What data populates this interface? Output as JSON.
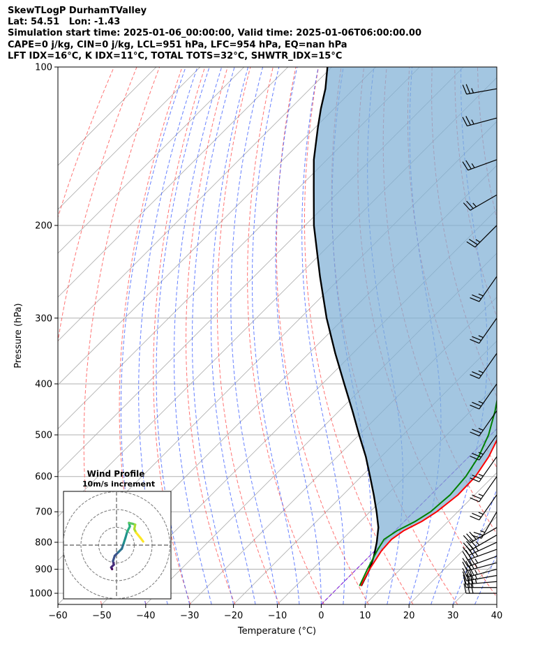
{
  "header": {
    "line1": "SkewTLogP DurhamTValley",
    "line2": "Lat: 54.51   Lon: -1.43",
    "line3": "Simulation start time: 2025-01-06_00:00:00, Valid time: 2025-01-06T06:00:00.00",
    "line4": "CAPE=0 j/kg, CIN=0 j/kg, LCL=951 hPa, LFC=954 hPa, EQ=nan hPa",
    "line5": "LFT IDX=16°C, K IDX=11°C, TOTAL TOTS=32°C, SHWTR_IDX=15°C"
  },
  "chart_data": {
    "type": "line",
    "subtype": "skew-T log-P",
    "xlabel": "Temperature (°C)",
    "ylabel": "Pressure (hPa)",
    "xlim": [
      -60,
      40
    ],
    "ylim": [
      1050,
      100
    ],
    "y_scale": "log",
    "grid": true,
    "x_ticks": [
      "−60",
      "−50",
      "−40",
      "−30",
      "−20",
      "−10",
      "0",
      "10",
      "20",
      "30",
      "40"
    ],
    "y_ticks": [
      "100",
      "200",
      "300",
      "400",
      "500",
      "600",
      "700",
      "800",
      "900",
      "1000"
    ],
    "colors": {
      "temperature": "#ff0000",
      "dewpoint": "#008000",
      "parcel": "#000000",
      "cape_fill": "#7fb0d6",
      "dry_adiabat": "#ff4444",
      "moist_adiabat": "#3355ff",
      "mixing_ratio": "#aaaaaa",
      "zero_isotherm": "#8a2be2"
    },
    "series": [
      {
        "key": "temperature",
        "points": [
          [
            4.8,
            968
          ],
          [
            3.0,
            900
          ],
          [
            1.5,
            830
          ],
          [
            1.2,
            790
          ],
          [
            2.0,
            760
          ],
          [
            4.0,
            730
          ],
          [
            5.2,
            700
          ],
          [
            6.2,
            650
          ],
          [
            6.0,
            600
          ],
          [
            4.5,
            550
          ],
          [
            2.0,
            500
          ],
          [
            -1.0,
            450
          ],
          [
            -4.5,
            400
          ],
          [
            -9.0,
            350
          ],
          [
            -14.0,
            300
          ],
          [
            -17.0,
            270
          ],
          [
            -18.5,
            260
          ],
          [
            -19.5,
            250
          ],
          [
            -22.0,
            230
          ],
          [
            -25.0,
            215
          ],
          [
            -28.5,
            200
          ],
          [
            -32.0,
            190
          ],
          [
            -36.0,
            180
          ],
          [
            -40.0,
            170
          ],
          [
            -43.5,
            160
          ],
          [
            -47.0,
            150
          ],
          [
            -50.5,
            140
          ],
          [
            -54.0,
            130
          ],
          [
            -57.5,
            120
          ],
          [
            -61.0,
            110
          ],
          [
            -64.5,
            100
          ]
        ]
      },
      {
        "key": "dewpoint",
        "points": [
          [
            4.5,
            968
          ],
          [
            2.5,
            900
          ],
          [
            0.5,
            830
          ],
          [
            -0.5,
            790
          ],
          [
            0.5,
            760
          ],
          [
            2.5,
            730
          ],
          [
            3.8,
            700
          ],
          [
            4.4,
            650
          ],
          [
            3.8,
            600
          ],
          [
            2.2,
            550
          ],
          [
            -0.5,
            500
          ],
          [
            -4.5,
            450
          ],
          [
            -9.5,
            400
          ],
          [
            -15.0,
            350
          ],
          [
            -20.5,
            300
          ],
          [
            -23.0,
            280
          ],
          [
            -25.0,
            270
          ],
          [
            -26.0,
            260
          ],
          [
            -27.0,
            250
          ],
          [
            -27.5,
            240
          ],
          [
            -28.5,
            230
          ],
          [
            -30.0,
            220
          ],
          [
            -31.5,
            210
          ],
          [
            -33.5,
            200
          ],
          [
            -37.0,
            190
          ],
          [
            -41.0,
            180
          ],
          [
            -44.5,
            170
          ],
          [
            -47.5,
            160
          ],
          [
            -50.0,
            150
          ],
          [
            -53.0,
            140
          ],
          [
            -56.0,
            130
          ],
          [
            -59.5,
            120
          ],
          [
            -63.0,
            110
          ],
          [
            -66.5,
            100
          ]
        ]
      },
      {
        "key": "parcel",
        "points": [
          [
            4.9,
            968
          ],
          [
            3.0,
            900
          ],
          [
            1.0,
            850
          ],
          [
            -1.5,
            800
          ],
          [
            -4.5,
            750
          ],
          [
            -8.5,
            700
          ],
          [
            -13.0,
            650
          ],
          [
            -18.0,
            600
          ],
          [
            -23.5,
            550
          ],
          [
            -30.0,
            500
          ],
          [
            -37.0,
            450
          ],
          [
            -45.0,
            400
          ],
          [
            -54.0,
            350
          ],
          [
            -64.0,
            300
          ],
          [
            -75.0,
            250
          ],
          [
            -88.0,
            200
          ],
          [
            -96.5,
            170
          ],
          [
            -103.0,
            150
          ],
          [
            -109.5,
            130
          ],
          [
            -113.0,
            120
          ],
          [
            -116.5,
            110
          ],
          [
            -121.0,
            100
          ]
        ]
      }
    ],
    "hodograph": {
      "title": "Wind Profile",
      "subtitle": "10m/s increment",
      "ring_increment_ms": 10,
      "points": [
        [
          -2.5,
          -13.5
        ],
        [
          -3.0,
          -12.5
        ],
        [
          -1.5,
          -11.0
        ],
        [
          -2.0,
          -9.0
        ],
        [
          -1.0,
          -6.0
        ],
        [
          1.0,
          -4.0
        ],
        [
          3.0,
          -2.0
        ],
        [
          4.0,
          1.0
        ],
        [
          5.0,
          4.0
        ],
        [
          6.0,
          7.5
        ],
        [
          7.5,
          10.5
        ],
        [
          7.0,
          12.5
        ],
        [
          9.0,
          12.0
        ],
        [
          10.5,
          11.5
        ],
        [
          10.0,
          9.0
        ],
        [
          11.0,
          7.0
        ],
        [
          13.5,
          4.0
        ],
        [
          15.0,
          2.0
        ]
      ]
    },
    "wind_barbs": [
      {
        "p": 1000,
        "spd": 30,
        "dir": 270
      },
      {
        "p": 975,
        "spd": 30,
        "dir": 270
      },
      {
        "p": 950,
        "spd": 35,
        "dir": 265
      },
      {
        "p": 925,
        "spd": 35,
        "dir": 260
      },
      {
        "p": 900,
        "spd": 35,
        "dir": 255
      },
      {
        "p": 875,
        "spd": 35,
        "dir": 255
      },
      {
        "p": 850,
        "spd": 35,
        "dir": 250
      },
      {
        "p": 825,
        "spd": 35,
        "dir": 250
      },
      {
        "p": 800,
        "spd": 35,
        "dir": 245
      },
      {
        "p": 775,
        "spd": 35,
        "dir": 240
      },
      {
        "p": 750,
        "spd": 30,
        "dir": 240
      },
      {
        "p": 700,
        "spd": 25,
        "dir": 210
      },
      {
        "p": 650,
        "spd": 25,
        "dir": 215
      },
      {
        "p": 600,
        "spd": 25,
        "dir": 215
      },
      {
        "p": 550,
        "spd": 25,
        "dir": 215
      },
      {
        "p": 500,
        "spd": 25,
        "dir": 215
      },
      {
        "p": 450,
        "spd": 25,
        "dir": 215
      },
      {
        "p": 400,
        "spd": 25,
        "dir": 215
      },
      {
        "p": 350,
        "spd": 25,
        "dir": 215
      },
      {
        "p": 300,
        "spd": 25,
        "dir": 215
      },
      {
        "p": 250,
        "spd": 25,
        "dir": 215
      },
      {
        "p": 200,
        "spd": 25,
        "dir": 225
      },
      {
        "p": 175,
        "spd": 25,
        "dir": 240
      },
      {
        "p": 150,
        "spd": 25,
        "dir": 250
      },
      {
        "p": 125,
        "spd": 25,
        "dir": 255
      },
      {
        "p": 110,
        "spd": 25,
        "dir": 260
      }
    ]
  }
}
